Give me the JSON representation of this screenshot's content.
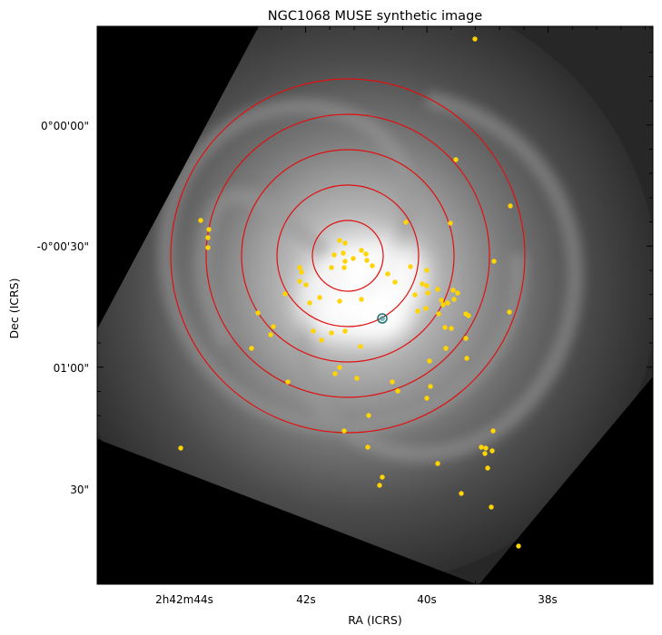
{
  "chart_data": {
    "type": "scatter",
    "title": "NGC1068 MUSE synthetic image",
    "xlabel": "RA (ICRS)",
    "ylabel": "Dec (ICRS)",
    "x_tick_labels": [
      "2h42m44s",
      "42s",
      "40s",
      "38s"
    ],
    "y_tick_labels": [
      "0°00'00\"",
      "-0°00'30\"",
      "01'00\"",
      "30\""
    ],
    "background": "grayscale MUSE synthetic image of a face-on spiral galaxy on a black background",
    "circles": {
      "color": "#e01010",
      "center_label": "galaxy centre",
      "count": 5
    },
    "markers": {
      "color": "#ffd400",
      "count": 90,
      "note": "yellow point sources scattered across the field"
    },
    "nucleus_marker": {
      "color": "#2a8a8a"
    }
  }
}
